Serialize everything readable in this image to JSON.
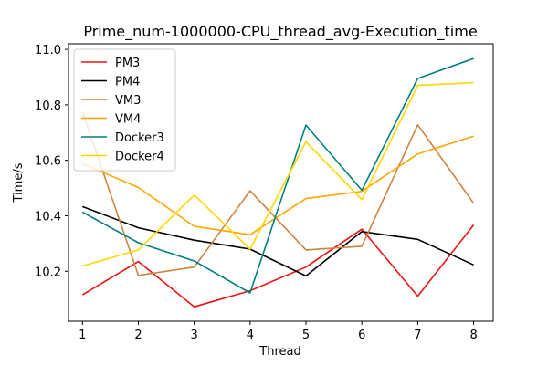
{
  "chart_data": {
    "type": "line",
    "title": "Prime_num-1000000-CPU_thread_avg-Execution_time",
    "xlabel": "Thread",
    "ylabel": "Time/s",
    "x": [
      1,
      2,
      3,
      4,
      5,
      6,
      7,
      8
    ],
    "xlim": [
      0.75,
      8.35
    ],
    "ylim": [
      10.02,
      11.02
    ],
    "yticks": [
      10.2,
      10.4,
      10.6,
      10.8,
      11.0
    ],
    "ytick_labels": [
      "10.2",
      "10.4",
      "10.6",
      "10.8",
      "11.0"
    ],
    "xtick_labels": [
      "1",
      "2",
      "3",
      "4",
      "5",
      "6",
      "7",
      "8"
    ],
    "legend_position": "top-left",
    "grid": false,
    "series": [
      {
        "name": "PM3",
        "color": "#ee1111",
        "values": [
          10.115,
          10.235,
          10.072,
          10.13,
          10.215,
          10.352,
          10.11,
          10.367
        ]
      },
      {
        "name": "PM4",
        "color": "#000000",
        "values": [
          10.433,
          10.357,
          10.312,
          10.28,
          10.183,
          10.343,
          10.315,
          10.223
        ]
      },
      {
        "name": "VM3",
        "color": "#cd853f",
        "values": [
          10.775,
          10.185,
          10.215,
          10.49,
          10.277,
          10.29,
          10.728,
          10.445
        ]
      },
      {
        "name": "VM4",
        "color": "#ffa500",
        "values": [
          10.588,
          10.502,
          10.362,
          10.332,
          10.462,
          10.488,
          10.623,
          10.687
        ]
      },
      {
        "name": "Docker3",
        "color": "#008080",
        "values": [
          10.413,
          10.303,
          10.237,
          10.122,
          10.727,
          10.492,
          10.895,
          10.967
        ]
      },
      {
        "name": "Docker4",
        "color": "#ffd700",
        "values": [
          10.219,
          10.277,
          10.475,
          10.28,
          10.667,
          10.458,
          10.87,
          10.88
        ]
      }
    ]
  }
}
